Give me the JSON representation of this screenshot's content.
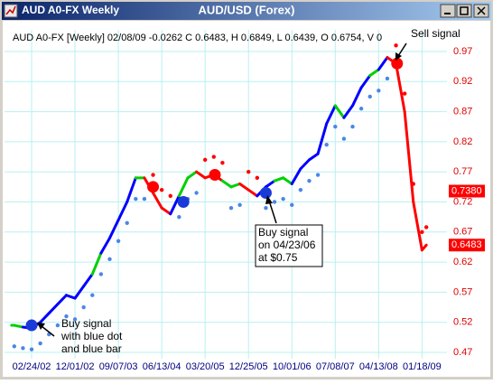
{
  "window": {
    "title": "AUD A0-FX Weekly",
    "caption": "AUD/USD (Forex)"
  },
  "chart_data": {
    "type": "line",
    "info": "AUD A0-FX [Weekly] 02/08/09 -0.0262 C 0.6483, H 0.6849, L 0.6439, O 0.6754, V 0",
    "x": [
      -16,
      -8,
      0,
      8,
      16,
      24,
      32,
      40,
      48,
      56,
      64,
      72,
      80,
      88,
      96,
      104,
      112,
      120,
      128,
      136,
      144,
      152,
      160,
      168,
      176,
      184,
      192,
      200,
      208,
      216,
      224,
      232,
      240,
      248,
      256,
      264,
      272,
      280,
      288,
      296,
      304,
      312,
      320,
      328,
      336,
      344,
      352,
      360,
      364
    ],
    "series": [
      {
        "values": [
          0.515,
          0.512,
          0.51,
          0.52,
          0.535,
          0.55,
          0.565,
          0.56,
          0.58,
          0.6,
          0.635,
          0.66,
          0.69,
          0.72,
          0.76,
          0.76,
          0.735,
          0.71,
          0.7,
          0.73,
          0.76,
          0.77,
          0.76,
          0.765,
          0.755,
          0.745,
          0.75,
          0.74,
          0.73,
          0.745,
          0.755,
          0.76,
          0.75,
          0.775,
          0.79,
          0.8,
          0.85,
          0.88,
          0.86,
          0.88,
          0.91,
          0.93,
          0.94,
          0.96,
          0.95,
          0.87,
          0.72,
          0.64,
          0.6483
        ],
        "colors": [
          "#00d000",
          "#00d000",
          "#0000ff",
          "#0000ff",
          "#0000ff",
          "#0000ff",
          "#0000ff",
          "#0000ff",
          "#0000ff",
          "#0000ff",
          "#00d000",
          "#0000ff",
          "#0000ff",
          "#0000ff",
          "#0000ff",
          "#00d000",
          "#ff0000",
          "#ff0000",
          "#ff0000",
          "#0000ff",
          "#00d000",
          "#00d000",
          "#ff0000",
          "#ff0000",
          "#ff0000",
          "#00d000",
          "#00d000",
          "#ff0000",
          "#ff0000",
          "#0000ff",
          "#0000ff",
          "#00d000",
          "#00d000",
          "#0000ff",
          "#0000ff",
          "#0000ff",
          "#0000ff",
          "#0000ff",
          "#00d000",
          "#0000ff",
          "#0000ff",
          "#0000ff",
          "#00d000",
          "#0000ff",
          "#ff0000",
          "#ff0000",
          "#ff0000",
          "#ff0000",
          "#ff0000"
        ]
      },
      {
        "values": [
          0.48,
          0.477,
          0.475,
          0.485,
          0.5,
          0.515,
          0.53,
          0.525,
          0.545,
          0.565,
          0.6,
          0.625,
          0.655,
          0.685,
          0.725,
          0.725,
          0.765,
          0.74,
          0.73,
          0.695,
          0.725,
          0.735,
          0.79,
          0.795,
          0.785,
          0.71,
          0.715,
          0.77,
          0.76,
          0.71,
          0.72,
          0.725,
          0.715,
          0.74,
          0.755,
          0.765,
          0.815,
          0.845,
          0.825,
          0.845,
          0.875,
          0.895,
          0.905,
          0.925,
          0.98,
          0.9,
          0.75,
          0.67,
          0.678
        ],
        "colors": [
          "#4a86e8",
          "#4a86e8",
          "#4a86e8",
          "#4a86e8",
          "#4a86e8",
          "#4a86e8",
          "#4a86e8",
          "#4a86e8",
          "#4a86e8",
          "#4a86e8",
          "#4a86e8",
          "#4a86e8",
          "#4a86e8",
          "#4a86e8",
          "#4a86e8",
          "#4a86e8",
          "#ff0000",
          "#ff0000",
          "#ff0000",
          "#4a86e8",
          "#4a86e8",
          "#4a86e8",
          "#ff0000",
          "#ff0000",
          "#ff0000",
          "#4a86e8",
          "#4a86e8",
          "#ff0000",
          "#ff0000",
          "#4a86e8",
          "#4a86e8",
          "#4a86e8",
          "#4a86e8",
          "#4a86e8",
          "#4a86e8",
          "#4a86e8",
          "#4a86e8",
          "#4a86e8",
          "#4a86e8",
          "#4a86e8",
          "#4a86e8",
          "#4a86e8",
          "#4a86e8",
          "#4a86e8",
          "#ff0000",
          "#ff0000",
          "#ff0000",
          "#ff0000",
          "#ff0000"
        ]
      }
    ],
    "signals": {
      "x": [
        0,
        112,
        140,
        169,
        216,
        337
      ],
      "values": [
        0.515,
        0.745,
        0.72,
        0.765,
        0.735,
        0.95
      ],
      "colors": [
        "#1a3ad8",
        "#ff0000",
        "#1a3ad8",
        "#ff0000",
        "#1a3ad8",
        "#ff0000"
      ]
    },
    "price_markers": [
      {
        "value": 0.738,
        "label": "0.7380"
      },
      {
        "value": 0.6483,
        "label": "0.6483"
      }
    ],
    "annotations": [
      [
        "Buy signal",
        "with blue dot",
        "and blue bar"
      ],
      [
        "Buy signal",
        "on 04/23/06",
        "at $0.75"
      ],
      [
        "Sell signal"
      ]
    ],
    "xlim": [
      -25,
      383
    ],
    "xticks": [
      {
        "value": 0,
        "label": "02/24/02"
      },
      {
        "value": 40,
        "label": "12/01/02"
      },
      {
        "value": 80,
        "label": "09/07/03"
      },
      {
        "value": 120,
        "label": "06/13/04"
      },
      {
        "value": 160,
        "label": "03/20/05"
      },
      {
        "value": 200,
        "label": "12/25/05"
      },
      {
        "value": 240,
        "label": "10/01/06"
      },
      {
        "value": 280,
        "label": "07/08/07"
      },
      {
        "value": 320,
        "label": "04/13/08"
      },
      {
        "value": 360,
        "label": "01/18/09"
      }
    ],
    "ylim": [
      0.4595,
      1.006
    ],
    "yticks": [
      0.47,
      0.52,
      0.57,
      0.62,
      0.67,
      0.72,
      0.77,
      0.82,
      0.87,
      0.92,
      0.97
    ],
    "grid": true
  }
}
